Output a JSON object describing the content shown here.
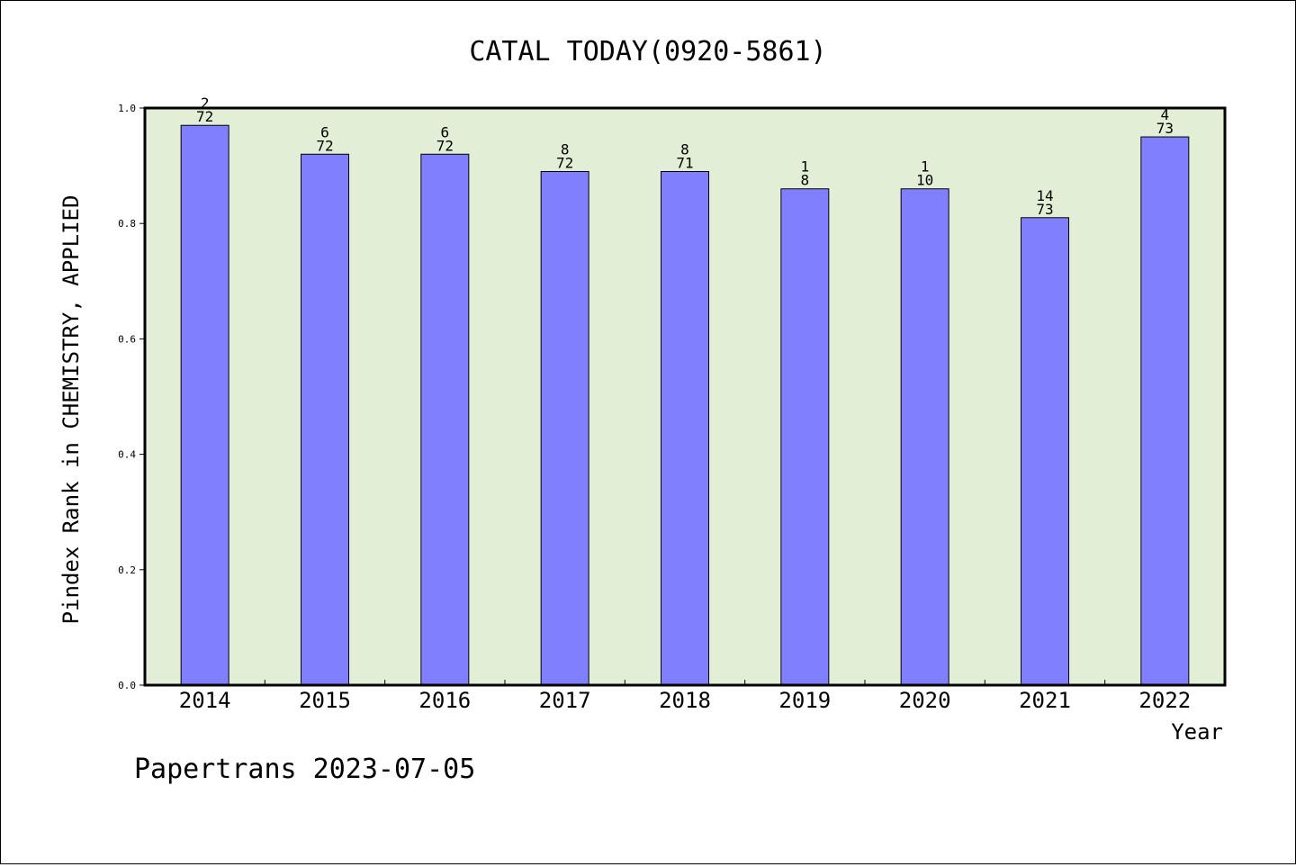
{
  "chart_data": {
    "type": "bar",
    "title": "CATAL TODAY(0920-5861)",
    "ylabel": "Pindex Rank in CHEMISTRY, APPLIED",
    "xlabel": "Year",
    "categories": [
      "2014",
      "2015",
      "2016",
      "2017",
      "2018",
      "2019",
      "2020",
      "2021",
      "2022"
    ],
    "values": [
      0.97,
      0.92,
      0.92,
      0.89,
      0.89,
      0.86,
      0.86,
      0.81,
      0.95
    ],
    "labels_top": [
      "2",
      "6",
      "6",
      "8",
      "8",
      "1",
      "1",
      "14",
      "4"
    ],
    "labels_bottom": [
      "72",
      "72",
      "72",
      "72",
      "71",
      "8",
      "10",
      "73",
      "73"
    ],
    "ylim": [
      0,
      1.0
    ],
    "yticks": [
      "0.0",
      "0.2",
      "0.4",
      "0.6",
      "0.8",
      "1.0"
    ],
    "grid": false,
    "colors": {
      "bar": "#8080ff",
      "plot_background": "#e2efd6"
    }
  },
  "footer": "Papertrans 2023-07-05"
}
